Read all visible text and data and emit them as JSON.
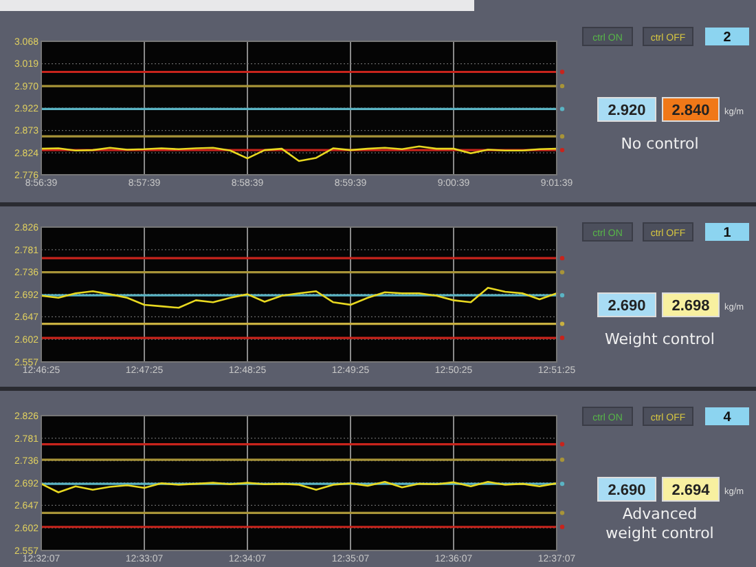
{
  "chart_data": [
    {
      "type": "line",
      "ylim": [
        2.776,
        3.068
      ],
      "xlim": [
        8.944167,
        9.0275
      ],
      "grid": true,
      "yticks": [
        {
          "value": 3.068,
          "label": "3.068"
        },
        {
          "value": 3.019,
          "label": "3.019"
        },
        {
          "value": 2.97,
          "label": "2.970"
        },
        {
          "value": 2.922,
          "label": "2.922"
        },
        {
          "value": 2.873,
          "label": "2.873"
        },
        {
          "value": 2.824,
          "label": "2.824"
        },
        {
          "value": 2.776,
          "label": "2.776"
        }
      ],
      "xticks": [
        {
          "value": 8.944167,
          "label": "8:56:39"
        },
        {
          "value": 8.960833,
          "label": "8:57:39"
        },
        {
          "value": 8.9775,
          "label": "8:58:39"
        },
        {
          "value": 8.994167,
          "label": "8:59:39"
        },
        {
          "value": 9.010833,
          "label": "9:00:39"
        },
        {
          "value": 9.0275,
          "label": "9:01:39"
        }
      ],
      "x": [
        8.944167,
        8.946944,
        8.949722,
        8.9525,
        8.955278,
        8.958056,
        8.960833,
        8.963611,
        8.966389,
        8.969167,
        8.971944,
        8.974722,
        8.9775,
        8.980278,
        8.983056,
        8.985833,
        8.988611,
        8.991389,
        8.994167,
        8.996944,
        8.999722,
        9.0025,
        9.005278,
        9.008056,
        9.010833,
        9.013611,
        9.016389,
        9.019167,
        9.021944,
        9.024722,
        9.0275
      ],
      "series": [
        {
          "color": "#e8d820",
          "values": [
            2.833,
            2.834,
            2.829,
            2.83,
            2.835,
            2.831,
            2.832,
            2.834,
            2.832,
            2.834,
            2.835,
            2.829,
            2.812,
            2.83,
            2.833,
            2.806,
            2.813,
            2.834,
            2.83,
            2.833,
            2.835,
            2.832,
            2.838,
            2.833,
            2.833,
            2.823,
            2.831,
            2.829,
            2.829,
            2.832,
            2.833
          ]
        }
      ],
      "ref_lines": [
        {
          "axis": "y",
          "value": 3.001,
          "color": "#c8241c"
        },
        {
          "axis": "y",
          "value": 2.97,
          "color": "#a89438"
        },
        {
          "axis": "y",
          "value": 2.92,
          "color": "#5ab4c4"
        },
        {
          "axis": "y",
          "value": 2.86,
          "color": "#a89438"
        },
        {
          "axis": "y",
          "value": 2.83,
          "color": "#c8241c"
        }
      ],
      "annotations": [
        "ctrl ON",
        "ctrl OFF",
        "2",
        "2.920",
        "2.840",
        "kg/m",
        "No control"
      ]
    },
    {
      "type": "line",
      "ylim": [
        2.557,
        2.826
      ],
      "xlim": [
        12.773611,
        12.856944
      ],
      "grid": true,
      "yticks": [
        {
          "value": 2.826,
          "label": "2.826"
        },
        {
          "value": 2.781,
          "label": "2.781"
        },
        {
          "value": 2.736,
          "label": "2.736"
        },
        {
          "value": 2.692,
          "label": "2.692"
        },
        {
          "value": 2.647,
          "label": "2.647"
        },
        {
          "value": 2.602,
          "label": "2.602"
        },
        {
          "value": 2.557,
          "label": "2.557"
        }
      ],
      "xticks": [
        {
          "value": 12.773611,
          "label": "12:46:25"
        },
        {
          "value": 12.790278,
          "label": "12:47:25"
        },
        {
          "value": 12.806944,
          "label": "12:48:25"
        },
        {
          "value": 12.823611,
          "label": "12:49:25"
        },
        {
          "value": 12.840278,
          "label": "12:50:25"
        },
        {
          "value": 12.856944,
          "label": "12:51:25"
        }
      ],
      "x": [
        12.773611,
        12.776389,
        12.779167,
        12.781944,
        12.784722,
        12.7875,
        12.790278,
        12.793056,
        12.795833,
        12.798611,
        12.801389,
        12.804167,
        12.806944,
        12.809722,
        12.8125,
        12.815278,
        12.818056,
        12.820833,
        12.823611,
        12.826389,
        12.829167,
        12.831944,
        12.834722,
        12.8375,
        12.840278,
        12.843056,
        12.845833,
        12.848611,
        12.851389,
        12.854167,
        12.856944
      ],
      "series": [
        {
          "color": "#e8d820",
          "values": [
            2.689,
            2.685,
            2.694,
            2.698,
            2.692,
            2.685,
            2.671,
            2.668,
            2.665,
            2.68,
            2.676,
            2.685,
            2.692,
            2.677,
            2.689,
            2.694,
            2.698,
            2.676,
            2.671,
            2.685,
            2.696,
            2.694,
            2.694,
            2.689,
            2.68,
            2.676,
            2.705,
            2.697,
            2.694,
            2.682,
            2.694
          ]
        }
      ],
      "ref_lines": [
        {
          "axis": "y",
          "value": 2.764,
          "color": "#c8241c"
        },
        {
          "axis": "y",
          "value": 2.736,
          "color": "#a89438"
        },
        {
          "axis": "y",
          "value": 2.69,
          "color": "#5ab4c4"
        },
        {
          "axis": "y",
          "value": 2.633,
          "color": "#c8b040"
        },
        {
          "axis": "y",
          "value": 2.605,
          "color": "#c8241c"
        }
      ],
      "annotations": [
        "ctrl ON",
        "ctrl OFF",
        "1",
        "2.690",
        "2.698",
        "kg/m",
        "Weight control"
      ]
    },
    {
      "type": "line",
      "ylim": [
        2.557,
        2.826
      ],
      "xlim": [
        12.535278,
        12.618611
      ],
      "grid": true,
      "yticks": [
        {
          "value": 2.826,
          "label": "2.826"
        },
        {
          "value": 2.781,
          "label": "2.781"
        },
        {
          "value": 2.736,
          "label": "2.736"
        },
        {
          "value": 2.692,
          "label": "2.692"
        },
        {
          "value": 2.647,
          "label": "2.647"
        },
        {
          "value": 2.602,
          "label": "2.602"
        },
        {
          "value": 2.557,
          "label": "2.557"
        }
      ],
      "xticks": [
        {
          "value": 12.535278,
          "label": "12:32:07"
        },
        {
          "value": 12.551944,
          "label": "12:33:07"
        },
        {
          "value": 12.568611,
          "label": "12:34:07"
        },
        {
          "value": 12.585278,
          "label": "12:35:07"
        },
        {
          "value": 12.601944,
          "label": "12:36:07"
        },
        {
          "value": 12.618611,
          "label": "12:37:07"
        }
      ],
      "x": [
        12.535278,
        12.538056,
        12.540833,
        12.543611,
        12.546389,
        12.549167,
        12.551944,
        12.554722,
        12.5575,
        12.560278,
        12.563056,
        12.565833,
        12.568611,
        12.571389,
        12.574167,
        12.576944,
        12.579722,
        12.5825,
        12.585278,
        12.588056,
        12.590833,
        12.593611,
        12.596389,
        12.599167,
        12.601944,
        12.604722,
        12.6075,
        12.610278,
        12.613056,
        12.615833,
        12.618611
      ],
      "series": [
        {
          "color": "#e8d820",
          "values": [
            2.69,
            2.673,
            2.685,
            2.678,
            2.684,
            2.687,
            2.682,
            2.691,
            2.688,
            2.69,
            2.692,
            2.689,
            2.692,
            2.689,
            2.69,
            2.688,
            2.678,
            2.688,
            2.691,
            2.686,
            2.694,
            2.683,
            2.69,
            2.689,
            2.693,
            2.685,
            2.694,
            2.688,
            2.69,
            2.685,
            2.691
          ]
        }
      ],
      "ref_lines": [
        {
          "axis": "y",
          "value": 2.769,
          "color": "#c8241c"
        },
        {
          "axis": "y",
          "value": 2.738,
          "color": "#a89438"
        },
        {
          "axis": "y",
          "value": 2.69,
          "color": "#5ab4c4"
        },
        {
          "axis": "y",
          "value": 2.632,
          "color": "#a89438"
        },
        {
          "axis": "y",
          "value": 2.604,
          "color": "#c8241c"
        }
      ],
      "annotations": [
        "ctrl ON",
        "ctrl OFF",
        "4",
        "2.690",
        "2.694",
        "kg/m",
        "Advanced weight control"
      ]
    }
  ]
}
